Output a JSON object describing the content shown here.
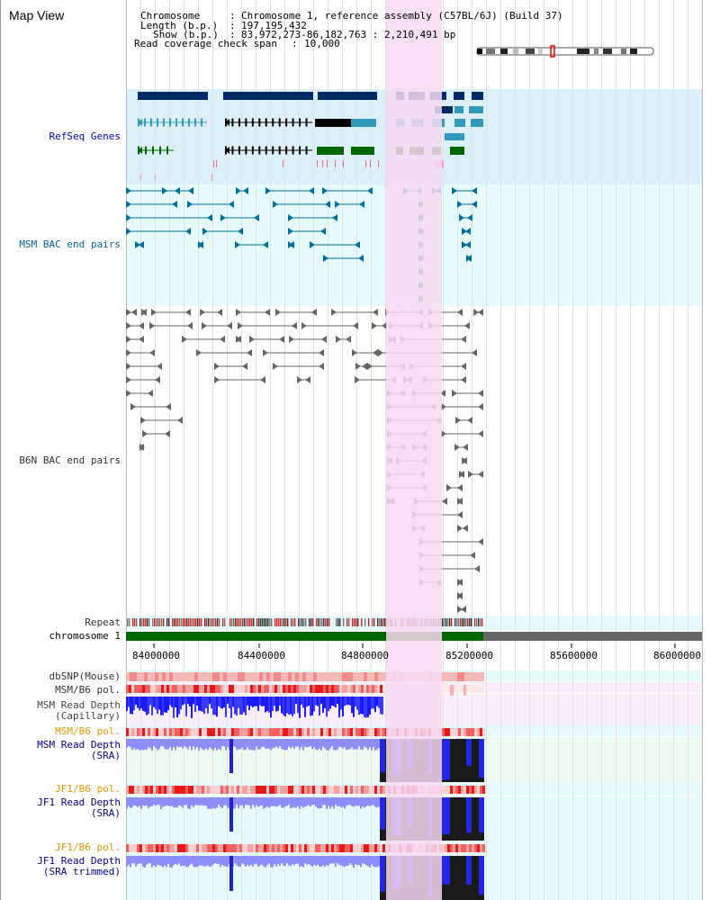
{
  "title": "Map View",
  "info": {
    "chromosome_label": "Chromosome",
    "chromosome_value": "Chromosome 1, reference assembly (C57BL/6J) (Build 37)",
    "length_label": "Length (b.p.)",
    "length_value": "197,195,432",
    "show_label": "Show (b.p.)",
    "show_value": "83,972,273-86,182,763 : 2,210,491 bp",
    "coverage_label": "Read coverage check span",
    "coverage_value": "10,000"
  },
  "tracks": {
    "refseq": "RefSeq Genes",
    "msm_bac": "MSM BAC end pairs",
    "b6n_bac": "B6N BAC end pairs",
    "repeat": "Repeat",
    "chromosome": "chromosome 1",
    "dbsnp": "dbSNP(Mouse)",
    "msm_b6_pol": "MSM/B6 pol.",
    "msm_read_cap": "MSM Read Depth\n(Capillary)",
    "msm_b6_pol2": "MSM/B6 pol.",
    "msm_read_sra": "MSM Read Depth\n(SRA)",
    "jf1_b6_pol": "JF1/B6 pol.",
    "jf1_read_sra": "JF1 Read Depth\n(SRA)",
    "jf1_b6_pol2": "JF1/B6 pol.",
    "jf1_read_trim": "JF1 Read Depth\n(SRA trimmed)"
  },
  "axis_ticks": [
    "84000000",
    "84400000",
    "84800000",
    "85200000",
    "85600000",
    "86000000"
  ],
  "colors": {
    "refseq_label": "#0000cc",
    "msm_label": "#006699",
    "b6n_label": "#333333",
    "pol_orange": "#e69500",
    "read_blue": "#000099",
    "gene_navy": "#002a66",
    "gene_teal": "#3399bb",
    "gene_green": "#006600",
    "highlight_pink": "#f7d9f2"
  }
}
